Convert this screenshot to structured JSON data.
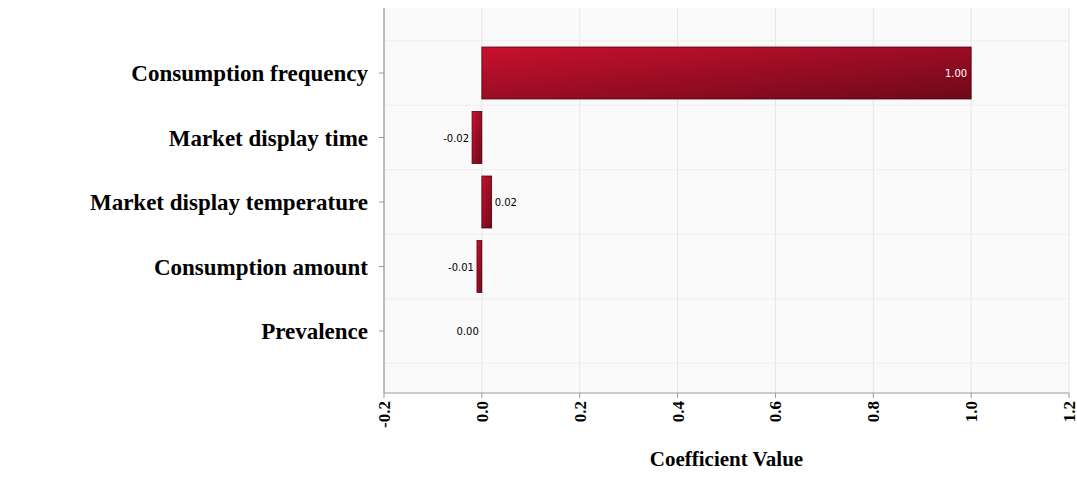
{
  "chart_data": {
    "type": "bar",
    "orientation": "horizontal",
    "categories": [
      "Consumption frequency",
      "Market display time",
      "Market display temperature",
      "Consumption amount",
      "Prevalence"
    ],
    "values": [
      1.0,
      -0.02,
      0.02,
      -0.01,
      0.0
    ],
    "value_labels": [
      "1.00",
      "-0.02",
      "0.02",
      "-0.01",
      "0.00"
    ],
    "color": "#c8102e",
    "x_label": "Coefficient Value",
    "xlim": [
      -0.2,
      1.2
    ],
    "xticks": [
      -0.2,
      {
        "value": 0,
        "label": "0.0"
      },
      0.2,
      0.4,
      0.6,
      0.8,
      {
        "value": 1,
        "label": "1.0"
      },
      1.2
    ],
    "grid": true,
    "data_labels": true
  }
}
